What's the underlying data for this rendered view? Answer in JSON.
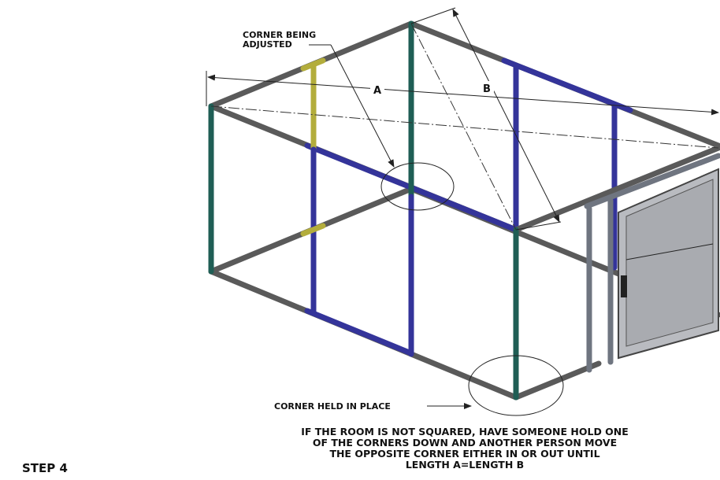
{
  "labels": {
    "corner_adjusted": [
      "CORNER BEING",
      "ADJUSTED"
    ],
    "dimension_a": "A",
    "dimension_b": "B",
    "corner_held": "CORNER HELD IN PLACE"
  },
  "instructions": [
    "IF THE ROOM IS NOT SQUARED, HAVE SOMEONE HOLD ONE",
    "OF THE CORNERS DOWN AND ANOTHER PERSON MOVE",
    "THE OPPOSITE CORNER EITHER IN OR OUT UNTIL",
    "LENGTH A=LENGTH B"
  ],
  "step": "STEP 4"
}
